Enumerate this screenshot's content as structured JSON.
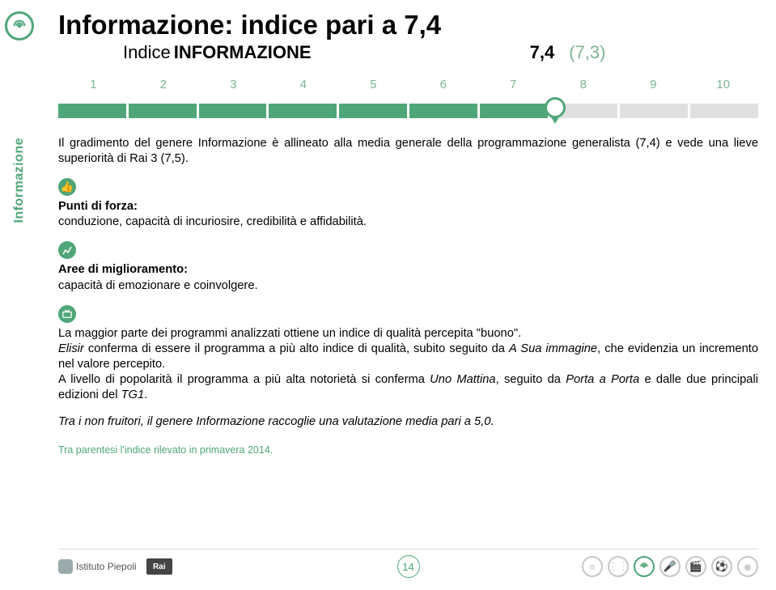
{
  "sidebar": {
    "label": "Informazione"
  },
  "title": "Informazione: indice pari a 7,4",
  "subtitle": {
    "prefix": "Indice",
    "word": "INFORMAZIONE",
    "value": "7,4",
    "prev": "(7,3)"
  },
  "scale": {
    "labels": [
      "1",
      "2",
      "3",
      "4",
      "5",
      "6",
      "7",
      "8",
      "9",
      "10"
    ],
    "filled": 7,
    "pointer_pct": 71
  },
  "intro": "Il gradimento del genere Informazione è allineato alla media generale della programmazione generalista (7,4) e vede una lieve superiorità di Rai 3 (7,5).",
  "strengths": {
    "heading": "Punti di forza:",
    "text": "conduzione, capacità di incuriosire, credibilità e affidabilità."
  },
  "improve": {
    "heading": "Aree di miglioramento:",
    "text": "capacità di emozionare e coinvolgere."
  },
  "body1": "La maggior parte dei programmi analizzati ottiene un indice di qualità percepita \"buono\".",
  "body2a": "Elisir",
  "body2b": " conferma di essere il programma a più alto indice di qualità, subito seguito da ",
  "body2c": "A Sua immagine",
  "body2d": ", che evidenzia un incremento nel valore percepito.",
  "body3a": "A livello di popolarità il programma a più alta notorietà si conferma ",
  "body3b": "Uno Mattina",
  "body3c": ", seguito da ",
  "body3d": "Porta a Porta",
  "body3e": " e dalle due principali edizioni del ",
  "body3f": "TG1",
  "body3g": ".",
  "body4": "Tra i non fruitori, il genere Informazione raccoglie una valutazione media pari a 5,0.",
  "footnote": "Tra parentesi l'indice rilevato in primavera 2014.",
  "footer": {
    "piepoli": "Istituto Piepoli",
    "rai": "Rai",
    "page": "14"
  },
  "colors": {
    "accent": "#4fa678"
  }
}
